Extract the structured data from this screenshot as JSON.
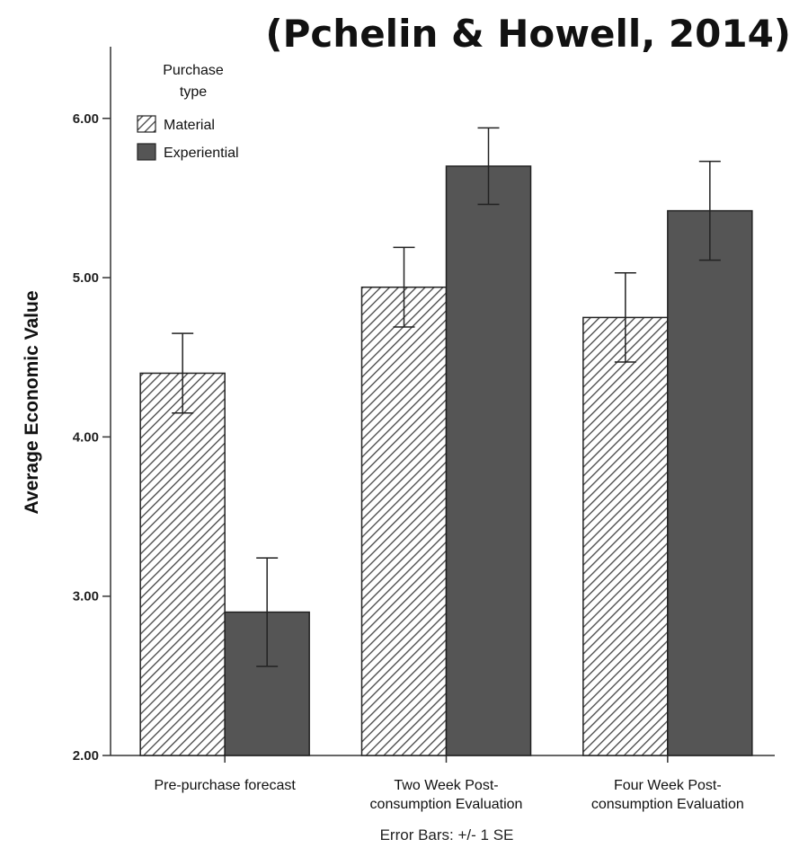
{
  "citation": "(Pchelin & Howell, 2014)",
  "note": "Error Bars: +/- 1 SE",
  "colors": {
    "material_fill": "#ffffff",
    "material_hatch": "#444444",
    "experiential_fill": "#555555",
    "bar_stroke": "#222222",
    "axis": "#333333"
  },
  "chart_data": {
    "type": "bar",
    "ylabel": "Average Economic Value",
    "xlabel": "",
    "ylim": [
      2.0,
      6.45
    ],
    "yticks": [
      "2.00",
      "3.00",
      "4.00",
      "5.00",
      "6.00"
    ],
    "categories": [
      [
        "Pre-purchase forecast"
      ],
      [
        "Two Week Post-",
        "consumption Evaluation"
      ],
      [
        "Four Week Post-",
        "consumption Evaluation"
      ]
    ],
    "legend": {
      "title": [
        "Purchase",
        "type"
      ],
      "placement": "top-left"
    },
    "series": [
      {
        "name": "Material",
        "pattern": "hatched",
        "values": [
          4.4,
          4.94,
          4.75
        ],
        "se": [
          0.25,
          0.25,
          0.28
        ]
      },
      {
        "name": "Experiential",
        "pattern": "solid",
        "values": [
          2.9,
          5.7,
          5.42
        ],
        "se": [
          0.34,
          0.24,
          0.31
        ]
      }
    ],
    "grid": false
  }
}
